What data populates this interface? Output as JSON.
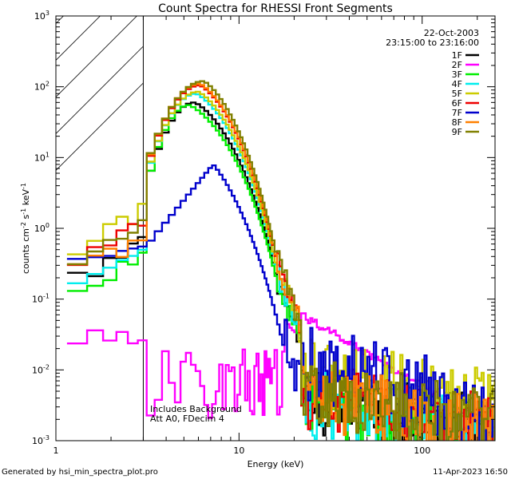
{
  "chart_data": {
    "type": "line",
    "title": "Count Spectra for RHESSI Front Segments",
    "xlabel": "Energy (keV)",
    "ylabel_parts": {
      "a": "counts cm",
      "b": "-2",
      "c": " s",
      "d": "-1",
      "e": " keV",
      "f": "-1"
    },
    "xscale": "log",
    "yscale": "log",
    "xlim": [
      1,
      250
    ],
    "ylim": [
      0.001,
      1000
    ],
    "x_ticks": [
      {
        "value": 1,
        "label": "1"
      },
      {
        "value": 10,
        "label": "10"
      },
      {
        "value": 100,
        "label": "100"
      }
    ],
    "y_ticks": [
      {
        "value": 0.001,
        "base": "10",
        "exp": "-3"
      },
      {
        "value": 0.01,
        "base": "10",
        "exp": "-2"
      },
      {
        "value": 0.1,
        "base": "10",
        "exp": "-1"
      },
      {
        "value": 1,
        "base": "10",
        "exp": "0"
      },
      {
        "value": 10,
        "base": "10",
        "exp": "1"
      },
      {
        "value": 100,
        "base": "10",
        "exp": "2"
      },
      {
        "value": 1000,
        "base": "10",
        "exp": "3"
      }
    ],
    "hatched_region": {
      "x_from": 1,
      "x_to": 3
    },
    "date": "22-Oct-2003",
    "time_range": "23:15:00 to 23:16:00",
    "annotation_lines": [
      "Includes Background",
      "Att A0, FDecim 4"
    ],
    "legend_position": "top-right",
    "series": [
      {
        "name": "1F",
        "color": "#000000",
        "peak": 60,
        "scale": 1.0,
        "low": 0.17,
        "tail": 0.0045,
        "shift": 0
      },
      {
        "name": "2F",
        "color": "#ff00ff",
        "special": "flat"
      },
      {
        "name": "3F",
        "color": "#00ee00",
        "peak": 55,
        "scale": 0.95,
        "low": 0.12,
        "tail": 0.004,
        "shift": -0.03
      },
      {
        "name": "4F",
        "color": "#00eeee",
        "peak": 80,
        "scale": 1.0,
        "low": 0.13,
        "tail": 0.004,
        "shift": 0.01
      },
      {
        "name": "5F",
        "color": "#cccc00",
        "peak": 85,
        "scale": 1.0,
        "low": 0.5,
        "tail": 0.012,
        "shift": 0.02
      },
      {
        "name": "6F",
        "color": "#ee0000",
        "peak": 105,
        "scale": 1.0,
        "low": 0.3,
        "tail": 0.005,
        "shift": 0.03
      },
      {
        "name": "7F",
        "color": "#0000cc",
        "special": "slow"
      },
      {
        "name": "8F",
        "color": "#ff8000",
        "peak": 110,
        "scale": 1.0,
        "low": 0.22,
        "tail": 0.005,
        "shift": 0.03
      },
      {
        "name": "9F",
        "color": "#808000",
        "peak": 120,
        "scale": 1.0,
        "low": 0.33,
        "tail": 0.006,
        "shift": 0.05
      }
    ]
  },
  "footer": {
    "left": "Generated by hsi_min_spectra_plot.pro",
    "right": "11-Apr-2023 16:50"
  }
}
